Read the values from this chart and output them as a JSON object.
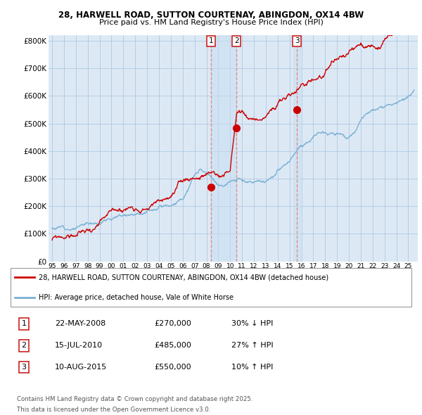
{
  "title_line1": "28, HARWELL ROAD, SUTTON COURTENAY, ABINGDON, OX14 4BW",
  "title_line2": "Price paid vs. HM Land Registry's House Price Index (HPI)",
  "background_color": "#ffffff",
  "plot_bg_color": "#dce9f5",
  "grid_color": "#b0c8e0",
  "red_line_color": "#cc0000",
  "blue_line_color": "#7ab0d4",
  "red_line_label": "28, HARWELL ROAD, SUTTON COURTENAY, ABINGDON, OX14 4BW (detached house)",
  "blue_line_label": "HPI: Average price, detached house, Vale of White Horse",
  "transactions": [
    {
      "num": 1,
      "date": "22-MAY-2008",
      "x": 2008.38,
      "price": 270000,
      "pct": "30%",
      "dir": "↓"
    },
    {
      "num": 2,
      "date": "15-JUL-2010",
      "x": 2010.54,
      "price": 485000,
      "pct": "27%",
      "dir": "↑"
    },
    {
      "num": 3,
      "date": "10-AUG-2015",
      "x": 2015.61,
      "price": 550000,
      "pct": "10%",
      "dir": "↑"
    }
  ],
  "footer_line1": "Contains HM Land Registry data © Crown copyright and database right 2025.",
  "footer_line2": "This data is licensed under the Open Government Licence v3.0.",
  "ylim": [
    0,
    820000
  ],
  "xlim": [
    1994.7,
    2025.8
  ],
  "yticks": [
    0,
    100000,
    200000,
    300000,
    400000,
    500000,
    600000,
    700000,
    800000
  ],
  "ytick_labels": [
    "£0",
    "£100K",
    "£200K",
    "£300K",
    "£400K",
    "£500K",
    "£600K",
    "£700K",
    "£800K"
  ],
  "xticks": [
    1995,
    1996,
    1997,
    1998,
    1999,
    2000,
    2001,
    2002,
    2003,
    2004,
    2005,
    2006,
    2007,
    2008,
    2009,
    2010,
    2011,
    2012,
    2013,
    2014,
    2015,
    2016,
    2017,
    2018,
    2019,
    2020,
    2021,
    2022,
    2023,
    2024,
    2025
  ],
  "table_rows": [
    [
      "1",
      "22-MAY-2008",
      "£270,000",
      "30% ↓ HPI"
    ],
    [
      "2",
      "15-JUL-2010",
      "£485,000",
      "27% ↑ HPI"
    ],
    [
      "3",
      "10-AUG-2015",
      "£550,000",
      "10% ↑ HPI"
    ]
  ]
}
